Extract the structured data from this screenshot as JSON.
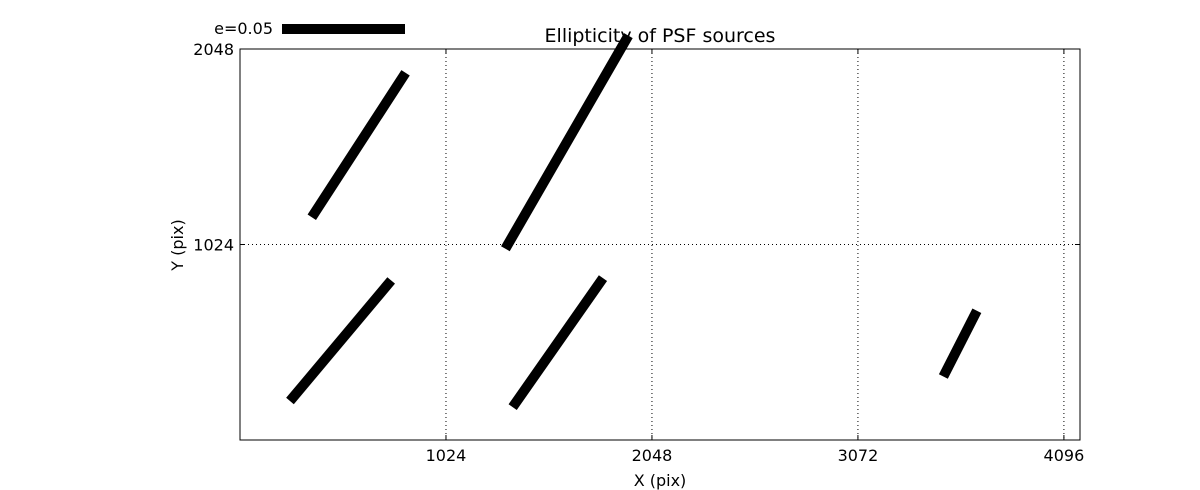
{
  "chart_data": {
    "type": "scatter",
    "marker": "ellipticity-whisker",
    "title": "Ellipticity of PSF sources",
    "xlabel": "X (pix)",
    "ylabel": "Y (pix)",
    "xlim": [
      0,
      4176
    ],
    "ylim": [
      0,
      2048
    ],
    "xticks": [
      1024,
      2048,
      3072,
      4096
    ],
    "xtick_labels": [
      "1024",
      "2048",
      "3072",
      "4096"
    ],
    "yticks": [
      1024,
      2048
    ],
    "ytick_labels": [
      "1024",
      "2048"
    ],
    "grid": true,
    "grid_style": "dotted",
    "legend": {
      "label": "e=0.05",
      "placement": "top-left, above axes",
      "reference_e": 0.05
    },
    "whiskers": [
      {
        "x": 590,
        "y": 1545,
        "e": 0.07,
        "angle_deg": 57
      },
      {
        "x": 1625,
        "y": 1560,
        "e": 0.1,
        "angle_deg": 60
      },
      {
        "x": 500,
        "y": 520,
        "e": 0.064,
        "angle_deg": 50
      },
      {
        "x": 1580,
        "y": 510,
        "e": 0.064,
        "angle_deg": 55
      },
      {
        "x": 3580,
        "y": 505,
        "e": 0.03,
        "angle_deg": 63
      }
    ],
    "colors": {
      "whisker": "#000000",
      "axes": "#000000",
      "grid": "#000000"
    }
  }
}
